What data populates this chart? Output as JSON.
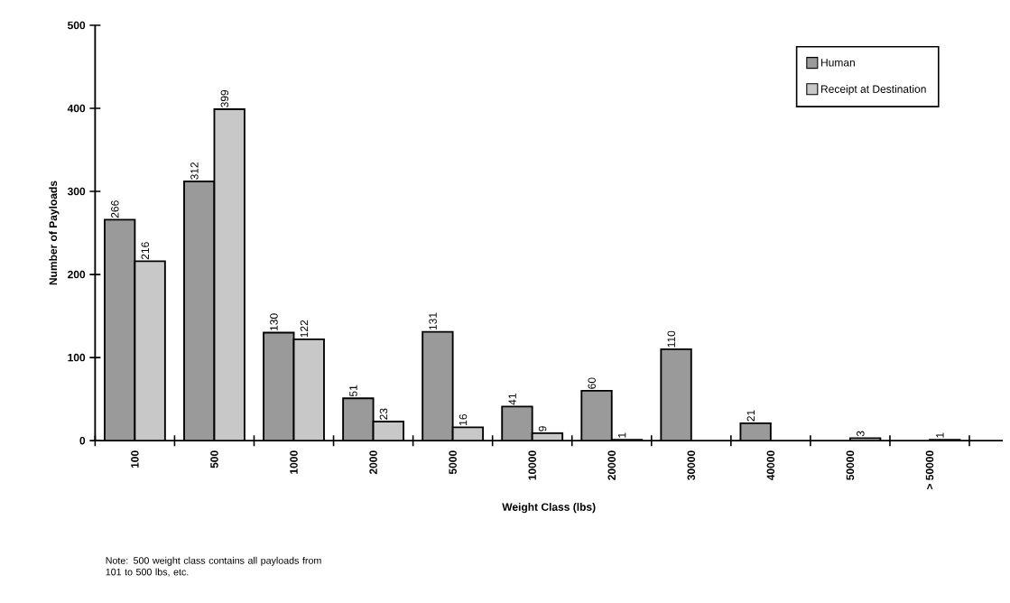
{
  "chart_data": {
    "type": "bar",
    "xlabel": "Weight Class (lbs)",
    "ylabel": "Number of Payloads",
    "categories": [
      "100",
      "500",
      "1000",
      "2000",
      "5000",
      "10000",
      "20000",
      "30000",
      "40000",
      "50000",
      "> 50000"
    ],
    "series": [
      {
        "name": "Human",
        "color": "#9a9a9a",
        "values": [
          266,
          312,
          130,
          51,
          131,
          41,
          60,
          110,
          21,
          null,
          null
        ]
      },
      {
        "name": "Receipt at Destination",
        "color": "#c8c8c8",
        "values": [
          216,
          399,
          122,
          23,
          16,
          9,
          1,
          null,
          null,
          3,
          1
        ]
      }
    ],
    "ylim": [
      0,
      500
    ],
    "yticks": [
      0,
      100,
      200,
      300,
      400,
      500
    ],
    "data_labels": true,
    "legend": "top right",
    "grid": false,
    "annotations": [
      "Note:  500 weight class contains all payloads from 101 to 500 lbs, etc."
    ]
  }
}
